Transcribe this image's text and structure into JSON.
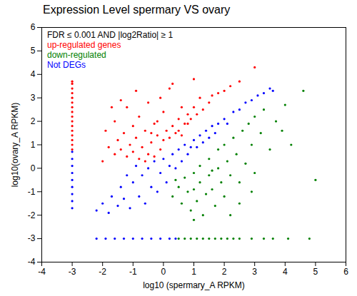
{
  "chart_data": {
    "type": "scatter",
    "title": "Expression Level spermary VS ovary",
    "xlabel": "log10 (spermary_A RPKM)",
    "ylabel": "log10(ovary_A RPKM)",
    "legend_title": "FDR ≤ 0.001 AND |log2Ratio| ≥ 1",
    "legend": "top-left",
    "xlim": [
      -4,
      6
    ],
    "ylim": [
      -4,
      6
    ],
    "xticks": [
      -4,
      -3,
      -2,
      -1,
      0,
      1,
      2,
      3,
      4,
      5,
      6
    ],
    "yticks": [
      -4,
      -3,
      -2,
      -1,
      0,
      1,
      2,
      3,
      4,
      5,
      6
    ],
    "series": [
      {
        "name": "up-regulated genes",
        "color": "#ff0000",
        "values": [
          [
            -3,
            0.8
          ],
          [
            -3,
            1.0
          ],
          [
            -3,
            1.2
          ],
          [
            -3,
            1.4
          ],
          [
            -3,
            1.6
          ],
          [
            -3,
            1.8
          ],
          [
            -3,
            2.0
          ],
          [
            -3,
            2.2
          ],
          [
            -3,
            2.4
          ],
          [
            -3,
            2.6
          ],
          [
            -3,
            2.8
          ],
          [
            -3,
            3.0
          ],
          [
            -3,
            3.2
          ],
          [
            -3,
            3.4
          ],
          [
            -3,
            3.6
          ],
          [
            -3,
            3.7
          ],
          [
            -1.8,
            0.9
          ],
          [
            -1.6,
            0.6
          ],
          [
            -1.5,
            1.2
          ],
          [
            -1.4,
            0.8
          ],
          [
            -1.3,
            1.5
          ],
          [
            -1.2,
            0.5
          ],
          [
            -1.1,
            1.0
          ],
          [
            -1.0,
            0.7
          ],
          [
            -1.0,
            1.8
          ],
          [
            -0.9,
            1.3
          ],
          [
            -0.8,
            0.4
          ],
          [
            -0.8,
            2.2
          ],
          [
            -0.7,
            0.9
          ],
          [
            -0.6,
            1.6
          ],
          [
            -0.5,
            0.6
          ],
          [
            -0.5,
            2.8
          ],
          [
            -0.4,
            1.1
          ],
          [
            -0.3,
            0.5
          ],
          [
            -0.3,
            1.9
          ],
          [
            -0.2,
            1.4
          ],
          [
            -0.1,
            0.8
          ],
          [
            -0.1,
            3.0
          ],
          [
            0.0,
            1.2
          ],
          [
            0.0,
            2.4
          ],
          [
            0.1,
            1.6
          ],
          [
            0.2,
            1.3
          ],
          [
            0.2,
            3.4
          ],
          [
            0.3,
            1.8
          ],
          [
            0.4,
            1.5
          ],
          [
            0.5,
            2.1
          ],
          [
            0.5,
            1.6
          ],
          [
            0.6,
            2.6
          ],
          [
            0.7,
            1.9
          ],
          [
            0.8,
            2.3
          ],
          [
            0.9,
            2.1
          ],
          [
            1.0,
            2.6
          ],
          [
            1.1,
            2.3
          ],
          [
            1.2,
            3.0
          ],
          [
            1.3,
            2.5
          ],
          [
            1.5,
            2.8
          ],
          [
            1.6,
            3.1
          ],
          [
            1.8,
            3.2
          ],
          [
            2.0,
            3.3
          ],
          [
            2.2,
            3.5
          ],
          [
            2.5,
            3.7
          ],
          [
            3.0,
            4.3
          ],
          [
            -1.6,
            2.0
          ],
          [
            -1.2,
            2.6
          ],
          [
            -0.9,
            3.3
          ],
          [
            -2.0,
            0.3
          ],
          [
            -0.6,
            0.3
          ],
          [
            0.3,
            3.6
          ],
          [
            1.0,
            3.8
          ],
          [
            -1.4,
            2.9
          ],
          [
            -0.2,
            2.0
          ],
          [
            0.8,
            1.9
          ],
          [
            0.6,
            1.4
          ],
          [
            -0.4,
            1.5
          ],
          [
            -1.9,
            1.6
          ],
          [
            -1.7,
            2.6
          ]
        ]
      },
      {
        "name": "down-regulated",
        "color": "#008000",
        "values": [
          [
            0.3,
            -1.2
          ],
          [
            0.5,
            -0.8
          ],
          [
            0.6,
            -1.5
          ],
          [
            0.7,
            -0.4
          ],
          [
            0.8,
            -1.0
          ],
          [
            0.9,
            -1.8
          ],
          [
            1.0,
            -0.2
          ],
          [
            1.0,
            -0.9
          ],
          [
            1.1,
            -1.4
          ],
          [
            1.2,
            0.1
          ],
          [
            1.2,
            -0.6
          ],
          [
            1.3,
            -2.0
          ],
          [
            1.4,
            -1.1
          ],
          [
            1.5,
            0.4
          ],
          [
            1.5,
            -0.3
          ],
          [
            1.6,
            -0.9
          ],
          [
            1.7,
            -1.6
          ],
          [
            1.8,
            0.8
          ],
          [
            1.8,
            0.0
          ],
          [
            1.9,
            -0.6
          ],
          [
            2.0,
            1.0
          ],
          [
            2.0,
            -1.2
          ],
          [
            2.1,
            0.3
          ],
          [
            2.2,
            -0.3
          ],
          [
            2.3,
            1.3
          ],
          [
            2.4,
            0.6
          ],
          [
            2.5,
            -0.6
          ],
          [
            2.5,
            -1.5
          ],
          [
            2.6,
            1.6
          ],
          [
            2.7,
            0.2
          ],
          [
            2.8,
            1.9
          ],
          [
            2.9,
            1.0
          ],
          [
            3.0,
            2.2
          ],
          [
            3.0,
            -0.2
          ],
          [
            3.2,
            1.5
          ],
          [
            3.3,
            2.5
          ],
          [
            3.5,
            0.8
          ],
          [
            3.7,
            2.0
          ],
          [
            3.9,
            1.6
          ],
          [
            4.0,
            2.7
          ],
          [
            4.2,
            1.0
          ],
          [
            4.6,
            3.3
          ],
          [
            5.0,
            -0.5
          ],
          [
            1.0,
            -2.2
          ],
          [
            2.2,
            -2.0
          ],
          [
            0.4,
            -0.5
          ],
          [
            1.6,
            -0.1
          ],
          [
            2.9,
            -1.0
          ],
          [
            0.5,
            -3
          ],
          [
            0.7,
            -3
          ],
          [
            0.9,
            -3
          ],
          [
            1.1,
            -3
          ],
          [
            1.3,
            -3
          ],
          [
            1.5,
            -3
          ],
          [
            1.7,
            -3
          ],
          [
            1.9,
            -3
          ],
          [
            2.1,
            -3
          ],
          [
            2.3,
            -3
          ],
          [
            2.5,
            -3
          ],
          [
            2.9,
            -3
          ],
          [
            3.3,
            -3
          ],
          [
            3.6,
            -3
          ],
          [
            4.1,
            -3
          ],
          [
            4.8,
            -3
          ]
        ]
      },
      {
        "name": "Not DEGs",
        "color": "#0000ff",
        "values": [
          [
            -2.2,
            -1.8
          ],
          [
            -2.0,
            -1.5
          ],
          [
            -1.8,
            -1.9
          ],
          [
            -1.7,
            -1.2
          ],
          [
            -1.5,
            -1.6
          ],
          [
            -1.4,
            -0.8
          ],
          [
            -1.3,
            -1.3
          ],
          [
            -1.2,
            -0.3
          ],
          [
            -1.1,
            -1.7
          ],
          [
            -1.0,
            -0.6
          ],
          [
            -0.9,
            0.1
          ],
          [
            -0.8,
            -1.2
          ],
          [
            -0.7,
            -0.3
          ],
          [
            -0.6,
            -1.5
          ],
          [
            -0.5,
            0.0
          ],
          [
            -0.4,
            -0.8
          ],
          [
            -0.3,
            0.3
          ],
          [
            -0.2,
            -1.0
          ],
          [
            -0.1,
            -0.2
          ],
          [
            0.0,
            0.4
          ],
          [
            0.1,
            -0.6
          ],
          [
            0.2,
            0.1
          ],
          [
            0.3,
            0.6
          ],
          [
            0.4,
            0.0
          ],
          [
            0.5,
            0.8
          ],
          [
            0.6,
            0.3
          ],
          [
            0.7,
            1.0
          ],
          [
            0.8,
            0.6
          ],
          [
            0.9,
            0.9
          ],
          [
            1.0,
            1.2
          ],
          [
            1.1,
            0.9
          ],
          [
            1.2,
            1.4
          ],
          [
            1.3,
            1.1
          ],
          [
            1.4,
            1.6
          ],
          [
            1.5,
            1.3
          ],
          [
            1.6,
            1.8
          ],
          [
            1.7,
            1.5
          ],
          [
            1.8,
            1.9
          ],
          [
            2.0,
            2.1
          ],
          [
            2.1,
            1.9
          ],
          [
            2.3,
            2.4
          ],
          [
            2.5,
            2.5
          ],
          [
            2.7,
            2.8
          ],
          [
            2.9,
            2.9
          ],
          [
            3.1,
            3.1
          ],
          [
            3.3,
            3.2
          ],
          [
            3.5,
            3.4
          ],
          [
            3.6,
            3.3
          ],
          [
            -3,
            -1.7
          ],
          [
            -3,
            -1.4
          ],
          [
            -3,
            -1.1
          ],
          [
            -3,
            -0.8
          ],
          [
            -3,
            -0.5
          ],
          [
            -3,
            -0.2
          ],
          [
            -3,
            0.1
          ],
          [
            -3,
            0.4
          ],
          [
            -3,
            0.7
          ],
          [
            -2.2,
            -3
          ],
          [
            -1.9,
            -3
          ],
          [
            -1.6,
            -3
          ],
          [
            -1.3,
            -3
          ],
          [
            -1.0,
            -3
          ],
          [
            -0.7,
            -3
          ],
          [
            -0.4,
            -3
          ],
          [
            -0.1,
            -3
          ],
          [
            0.2,
            -3
          ],
          [
            0.4,
            -3
          ]
        ]
      }
    ]
  }
}
